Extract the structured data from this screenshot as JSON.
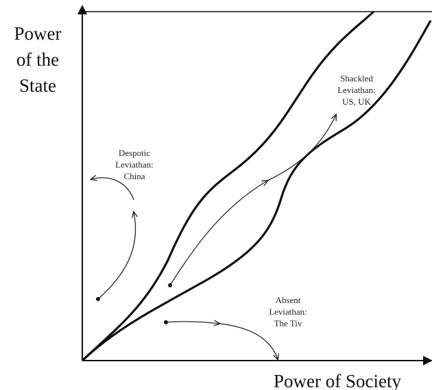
{
  "axes": {
    "y_label": [
      "Power",
      "of the",
      "State"
    ],
    "x_label": "Power of Society"
  },
  "regions": [
    {
      "lines": [
        "Despotic",
        "Leviathan:",
        "China"
      ]
    },
    {
      "lines": [
        "Shackled",
        "Leviathan:",
        "US, UK"
      ]
    },
    {
      "lines": [
        "Absent",
        "Leviathan:",
        "The Tiv"
      ]
    }
  ]
}
